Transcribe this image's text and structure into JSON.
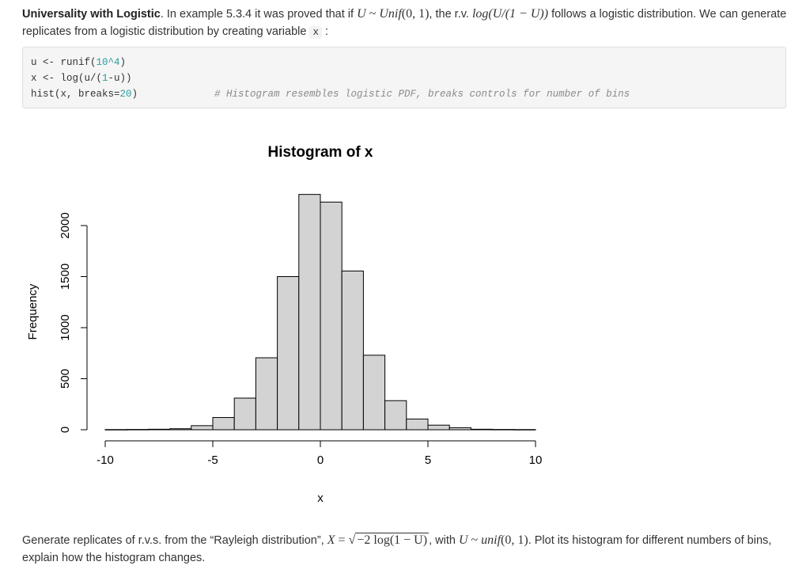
{
  "intro": {
    "bold_title": "Universality with Logistic",
    "text_1": ". In example 5.3.4 it was proved that if ",
    "math_U": "U",
    "tilde": " ~ ",
    "math_unif": "Unif",
    "math_args": "(0, 1)",
    "text_2": ", the r.v. ",
    "math_log": "log(U/(1 − U))",
    "text_3": " follows a logistic distribution. We can generate replicates from a logistic distribution by creating variable ",
    "code_var": "x",
    "text_4": " :"
  },
  "code": {
    "line1_pre": "u <- runif(",
    "line1_num": "10^4",
    "line1_post": ")",
    "line2_pre": "x <- log(u/(",
    "line2_num": "1",
    "line2_post": "-u))",
    "line3_pre": "hist(x, breaks=",
    "line3_num": "20",
    "line3_post": ")",
    "comment": "# Histogram resembles logistic PDF, breaks controls for number of bins"
  },
  "chart_data": {
    "type": "bar",
    "title": "Histogram of x",
    "xlabel": "x",
    "ylabel": "Frequency",
    "x_ticks": [
      "-10",
      "-5",
      "0",
      "5",
      "10"
    ],
    "x_tick_values": [
      -10,
      -5,
      0,
      5,
      10
    ],
    "y_ticks": [
      "0",
      "500",
      "1000",
      "1500",
      "2000"
    ],
    "y_tick_values": [
      0,
      500,
      1000,
      1500,
      2000
    ],
    "xlim": [
      -10,
      10
    ],
    "ylim": [
      0,
      2000
    ],
    "bin_width": 1,
    "bin_starts": [
      -10,
      -9,
      -8,
      -7,
      -6,
      -5,
      -4,
      -3,
      -2,
      -1,
      0,
      1,
      2,
      3,
      4,
      5,
      6,
      7,
      8,
      9
    ],
    "values": [
      2,
      3,
      5,
      10,
      40,
      120,
      310,
      705,
      1500,
      2305,
      2230,
      1555,
      730,
      285,
      105,
      45,
      20,
      5,
      3,
      2
    ],
    "bar_fill": "#d3d3d3",
    "bar_stroke": "#000000"
  },
  "outro": {
    "text_1": "Generate replicates of r.v.s. from the “Rayleigh distribution”, ",
    "math_X": "X",
    "eq": " = ",
    "sqrt_content": "−2 log(1 − U)",
    "text_2": ", with ",
    "math_U": "U",
    "tilde": " ~ ",
    "math_unif": "unif",
    "math_args": "(0, 1)",
    "text_3": ". Plot its histogram for different numbers of bins, explain how the histogram changes."
  }
}
